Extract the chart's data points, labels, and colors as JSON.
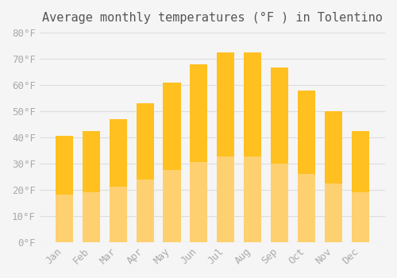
{
  "title": "Average monthly temperatures (°F ) in Tolentino",
  "months": [
    "Jan",
    "Feb",
    "Mar",
    "Apr",
    "May",
    "Jun",
    "Jul",
    "Aug",
    "Sep",
    "Oct",
    "Nov",
    "Dec"
  ],
  "values": [
    40.5,
    42.5,
    47.0,
    53.0,
    61.0,
    68.0,
    72.5,
    72.5,
    66.5,
    58.0,
    50.0,
    42.5
  ],
  "bar_color_top": "#FFC020",
  "bar_color_bottom": "#FFD070",
  "background_color": "#F5F5F5",
  "grid_color": "#DDDDDD",
  "text_color": "#AAAAAA",
  "ylim": [
    0,
    80
  ],
  "yticks": [
    0,
    10,
    20,
    30,
    40,
    50,
    60,
    70,
    80
  ],
  "ytick_labels": [
    "0°F",
    "10°F",
    "20°F",
    "30°F",
    "40°F",
    "50°F",
    "60°F",
    "70°F",
    "80°F"
  ],
  "title_fontsize": 11,
  "tick_fontsize": 9
}
